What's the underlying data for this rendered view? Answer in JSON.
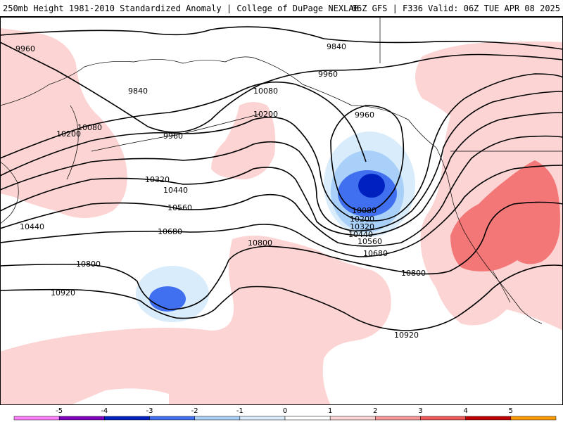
{
  "header": {
    "title_left": "250mb Height 1981-2010 Standardized Anomaly | College of DuPage NEXLAB",
    "title_right": "06Z GFS | F336 Valid: 06Z TUE APR 08 2025"
  },
  "contour_labels": [
    "9840",
    "9960",
    "10080",
    "10200",
    "10320",
    "10440",
    "10560",
    "10680",
    "10800",
    "10920"
  ],
  "colorbar": {
    "ticks": [
      "-5",
      "-4",
      "-3",
      "-2",
      "-1",
      "0",
      "1",
      "2",
      "3",
      "4",
      "5"
    ],
    "bins": [
      {
        "from": -6,
        "to": -5,
        "color": "#ff80ff"
      },
      {
        "from": -5,
        "to": -4,
        "color": "#8000c0"
      },
      {
        "from": -4,
        "to": -3,
        "color": "#0020c0"
      },
      {
        "from": -3,
        "to": -2,
        "color": "#4070f0"
      },
      {
        "from": -2,
        "to": -1,
        "color": "#a8d0f8"
      },
      {
        "from": -1,
        "to": 0,
        "color": "#d8ecfc"
      },
      {
        "from": 0,
        "to": 1,
        "color": "#ffffff"
      },
      {
        "from": 1,
        "to": 2,
        "color": "#fcd4d4"
      },
      {
        "from": 2,
        "to": 3,
        "color": "#f89898"
      },
      {
        "from": 3,
        "to": 4,
        "color": "#f05858"
      },
      {
        "from": 4,
        "to": 5,
        "color": "#c00000"
      },
      {
        "from": 5,
        "to": 6,
        "color": "#ff9c00"
      }
    ]
  },
  "colors": {
    "anomaly_pos_1": "#fcd4d4",
    "anomaly_pos_2": "#f89898",
    "anomaly_pos_3": "#f05858",
    "anomaly_neg_1": "#d8ecfc",
    "anomaly_neg_2": "#a8d0f8",
    "anomaly_neg_3": "#4070f0",
    "anomaly_neg_4": "#0020c0"
  }
}
